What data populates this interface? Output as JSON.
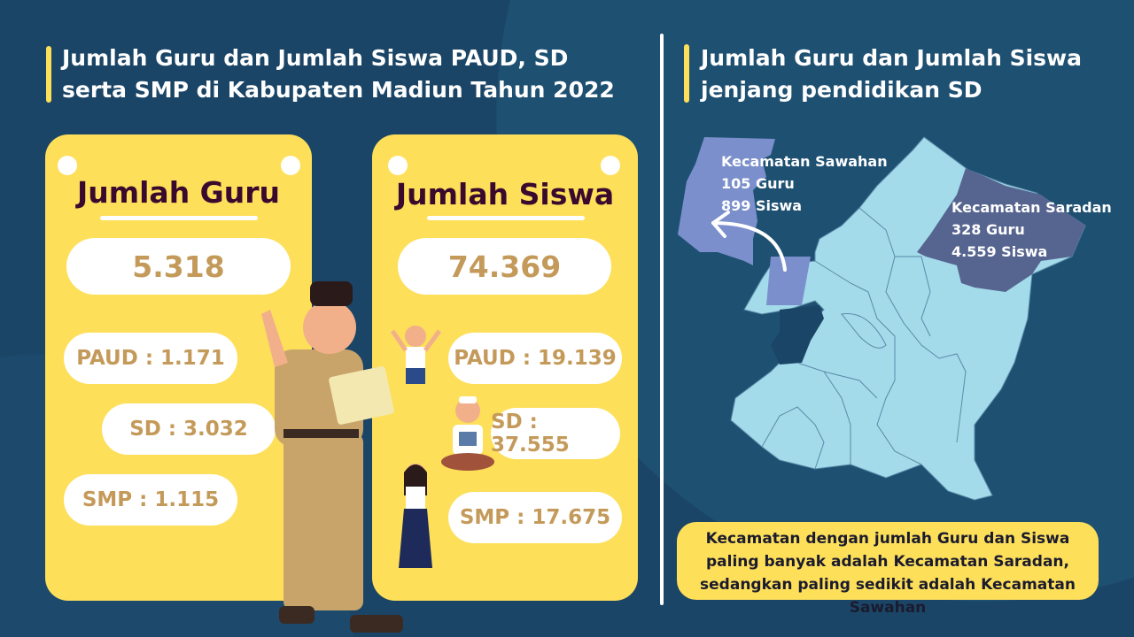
{
  "left_title": "Jumlah Guru dan Jumlah Siswa PAUD, SD serta SMP di Kabupaten Madiun Tahun 2022",
  "right_title": "Jumlah Guru dan Jumlah Siswa jenjang pendidikan SD",
  "guru_card": {
    "title": "Jumlah Guru",
    "total": "5.318",
    "paud": "PAUD : 1.171",
    "sd": "SD : 3.032",
    "smp": "SMP : 1.115"
  },
  "siswa_card": {
    "title": "Jumlah Siswa",
    "total": "74.369",
    "paud": "PAUD : 19.139",
    "sd": "SD : 37.555",
    "smp": "SMP : 17.675"
  },
  "map": {
    "sawahan": {
      "name": "Kecamatan Sawahan",
      "guru": "105 Guru",
      "siswa": "899 Siswa",
      "color": "#7b8fcc"
    },
    "saradan": {
      "name": "Kecamatan Saradan",
      "guru": "328 Guru",
      "siswa": "4.559 Siswa",
      "color": "#566590"
    },
    "base_color": "#a3dbea"
  },
  "note": "Kecamatan dengan jumlah Guru dan Siswa paling banyak adalah Kecamatan Saradan, sedangkan paling sedikit adalah Kecamatan Sawahan",
  "colors": {
    "background": "#1b4566",
    "accent": "#fddf5a",
    "number": "#c49a5a"
  }
}
